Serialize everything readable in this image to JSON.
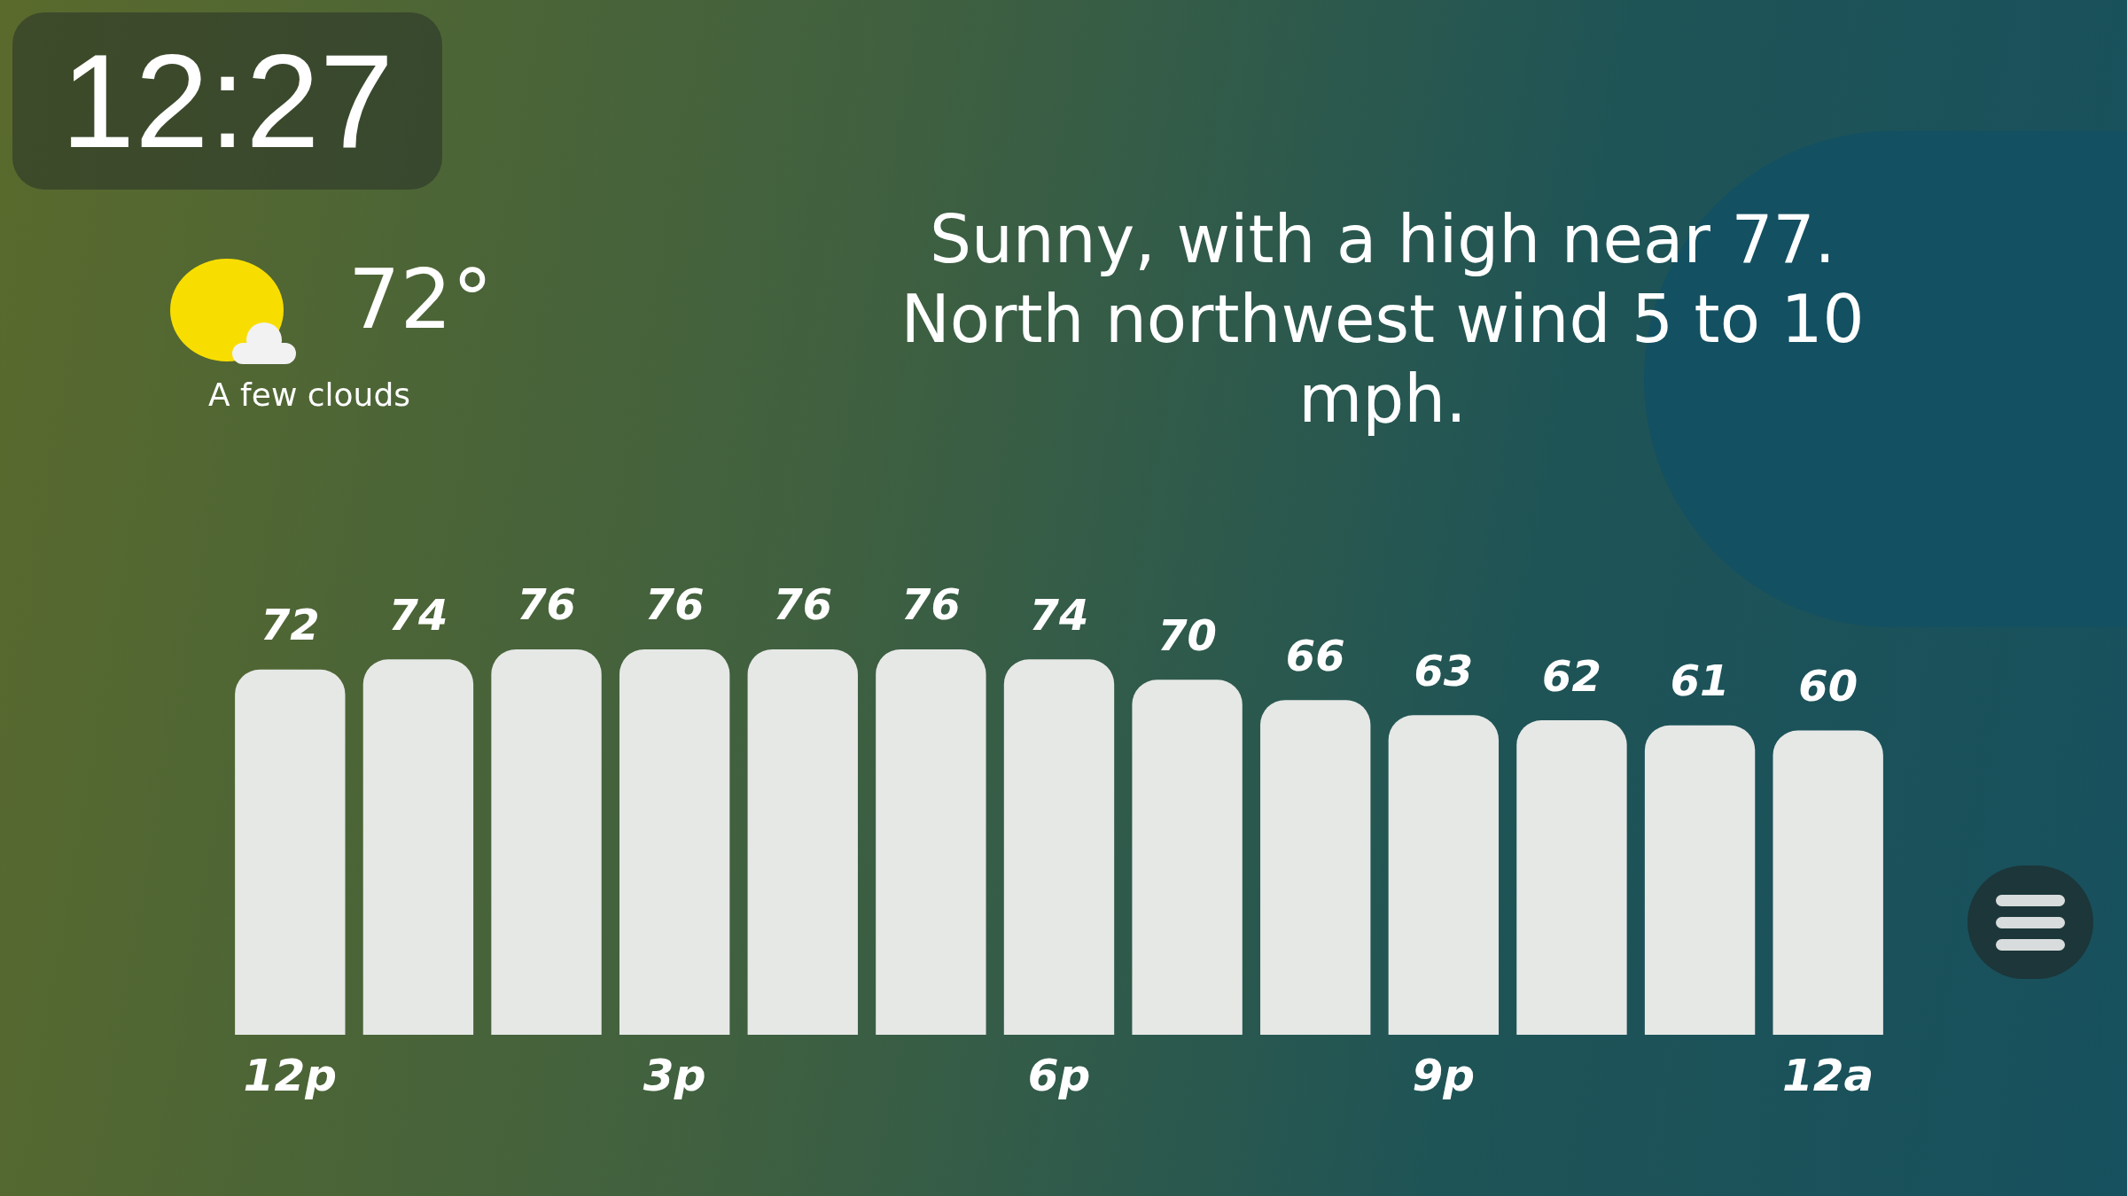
{
  "chart_data": {
    "type": "bar",
    "categories": [
      "12p",
      null,
      null,
      "3p",
      null,
      null,
      "6p",
      null,
      null,
      "9p",
      null,
      null,
      "12a"
    ],
    "values": [
      72,
      74,
      76,
      76,
      76,
      76,
      74,
      70,
      66,
      63,
      62,
      61,
      60
    ],
    "color": "#e6e8e6",
    "data_labels": true,
    "annotations": [
      "12:27",
      "72°",
      "A few clouds",
      "Sunny, with a high near 77. North northwest wind 5 to 10 mph."
    ]
  }
}
